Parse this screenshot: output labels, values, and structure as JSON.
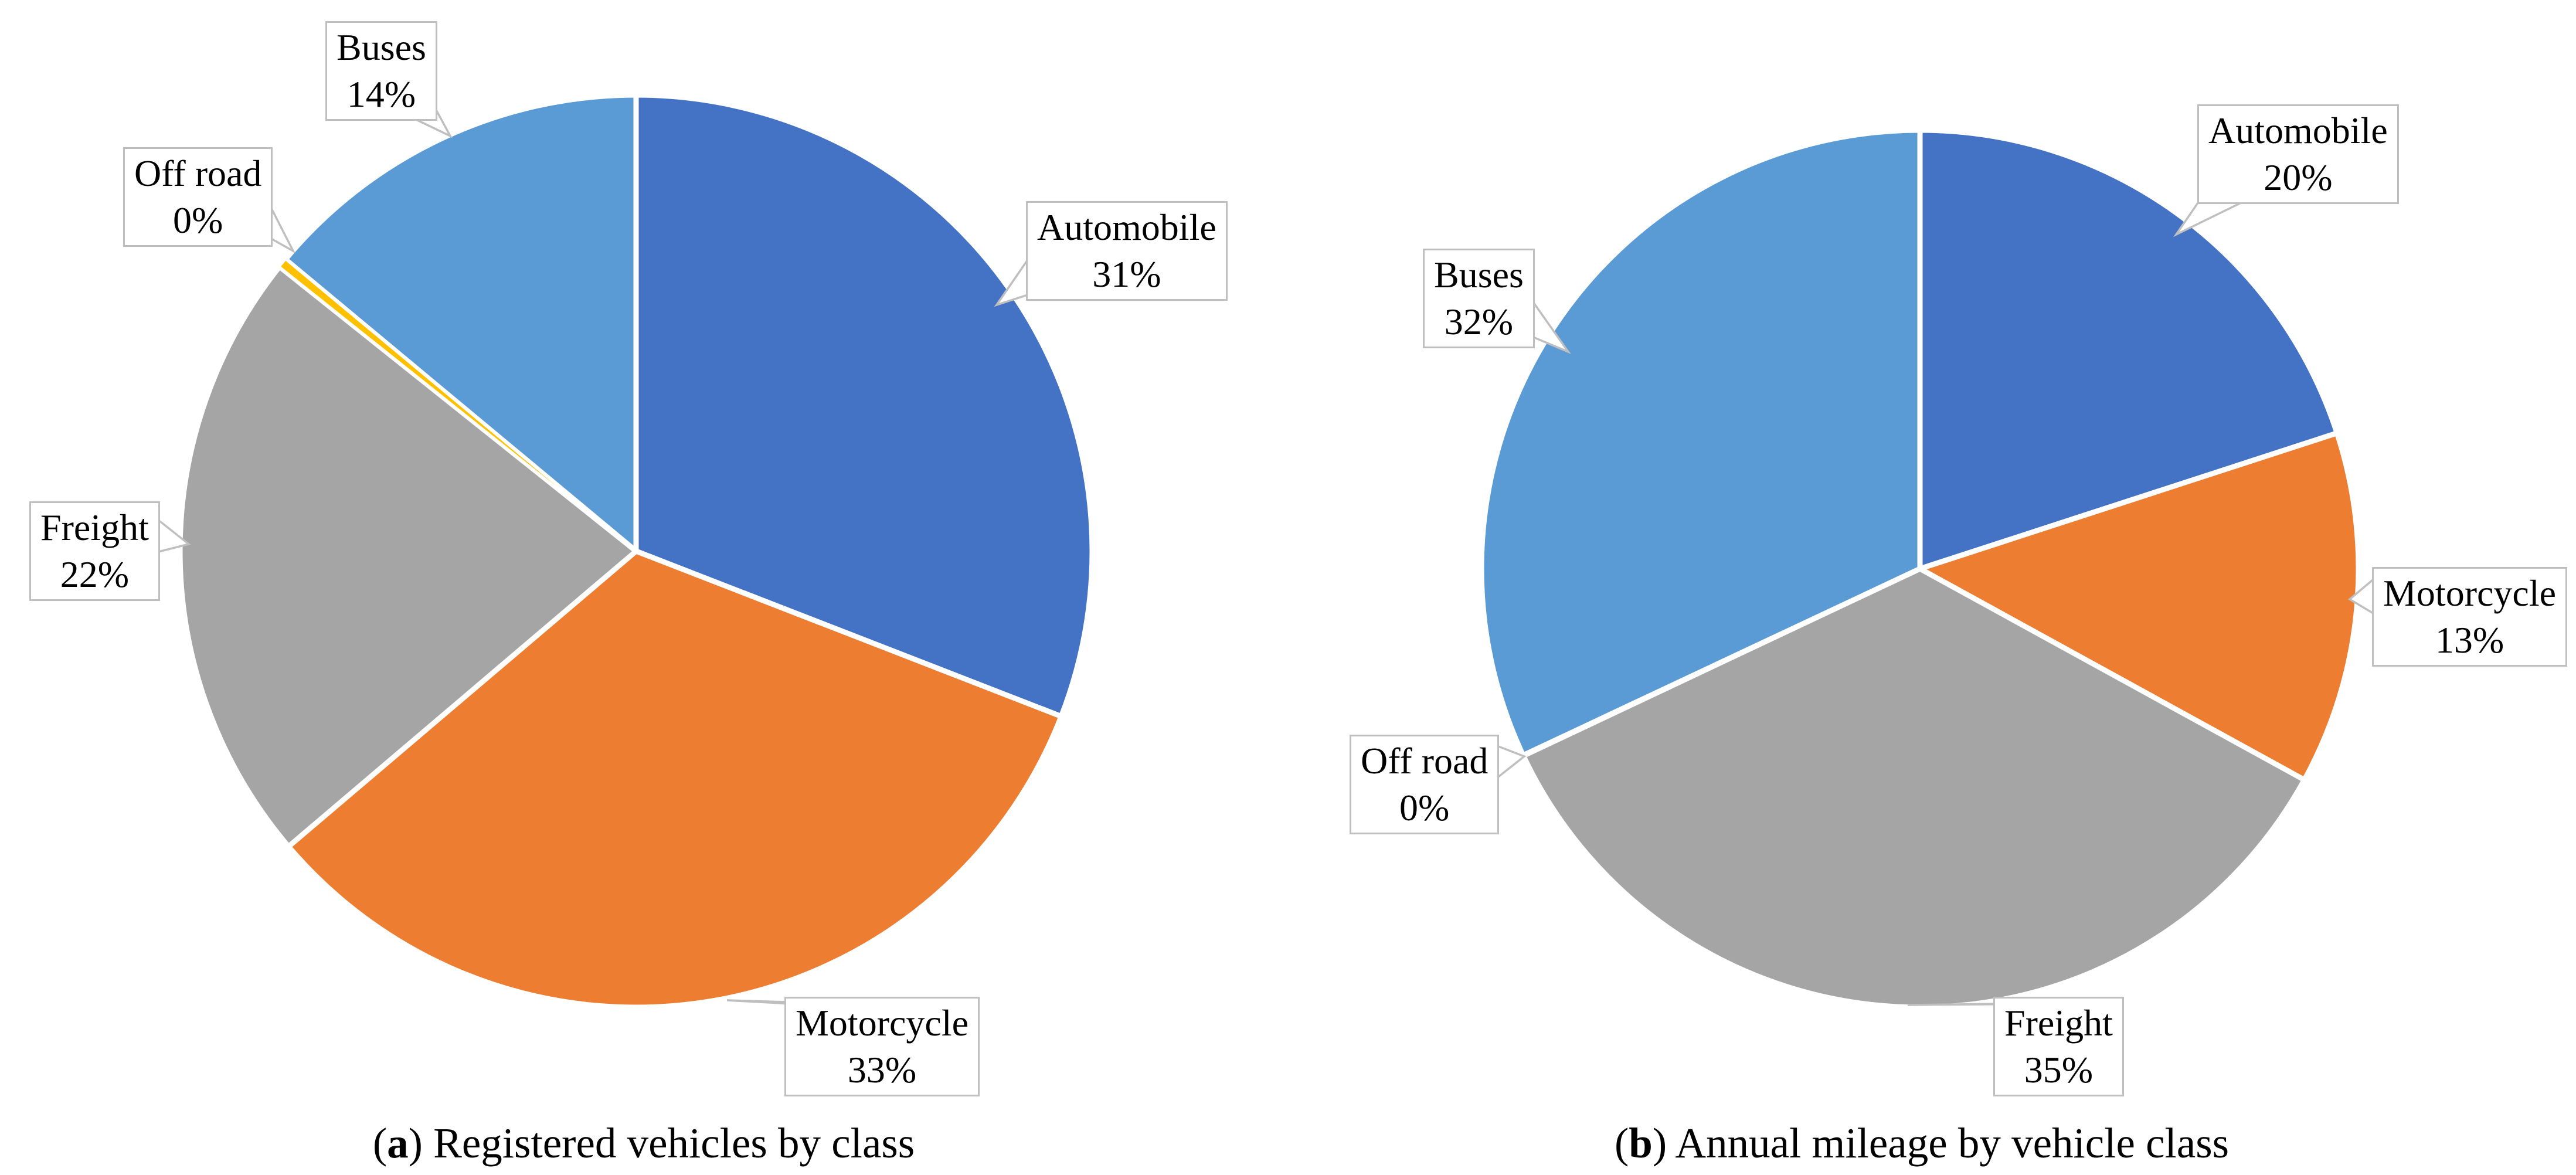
{
  "figure": {
    "background": "#FFFFFF"
  },
  "colors": {
    "automobile": "#4472C4",
    "motorcycle": "#ED7D31",
    "freight": "#A5A5A5",
    "off_road": "#FFC000",
    "buses": "#5B9BD5",
    "slice_border": "#FFFFFF",
    "callout_border": "#BFBFBF",
    "callout_background": "#FFFFFF",
    "text": "#000000"
  },
  "chart_data": [
    {
      "id": "a",
      "type": "pie",
      "caption": {
        "prefix": "(",
        "marker": "a",
        "rest": ") Registered vehicles by class"
      },
      "categories": [
        "Automobile",
        "Motorcycle",
        "Freight",
        "Off road",
        "Buses"
      ],
      "values": [
        31,
        33,
        22,
        0,
        14
      ],
      "unit": "%",
      "slice_colors": [
        "#4472C4",
        "#ED7D31",
        "#A5A5A5",
        "#FFC000",
        "#5B9BD5"
      ],
      "start_angle_deg": 0,
      "direction": "clockwise",
      "label_style": "callout",
      "legend": "none",
      "labels": [
        {
          "name": "Automobile",
          "value": "31%"
        },
        {
          "name": "Motorcycle",
          "value": "33%"
        },
        {
          "name": "Freight",
          "value": "22%"
        },
        {
          "name": "Off road",
          "value": "0%"
        },
        {
          "name": "Buses",
          "value": "14%"
        }
      ]
    },
    {
      "id": "b",
      "type": "pie",
      "caption": {
        "prefix": "(",
        "marker": "b",
        "rest": ") Annual mileage by vehicle class"
      },
      "categories": [
        "Automobile",
        "Motorcycle",
        "Freight",
        "Off road",
        "Buses"
      ],
      "values": [
        20,
        13,
        35,
        0,
        32
      ],
      "unit": "%",
      "slice_colors": [
        "#4472C4",
        "#ED7D31",
        "#A5A5A5",
        "#FFC000",
        "#5B9BD5"
      ],
      "start_angle_deg": 0,
      "direction": "clockwise",
      "label_style": "callout",
      "legend": "none",
      "labels": [
        {
          "name": "Automobile",
          "value": "20%"
        },
        {
          "name": "Motorcycle",
          "value": "13%"
        },
        {
          "name": "Freight",
          "value": "35%"
        },
        {
          "name": "Off road",
          "value": "0%"
        },
        {
          "name": "Buses",
          "value": "32%"
        }
      ]
    }
  ]
}
